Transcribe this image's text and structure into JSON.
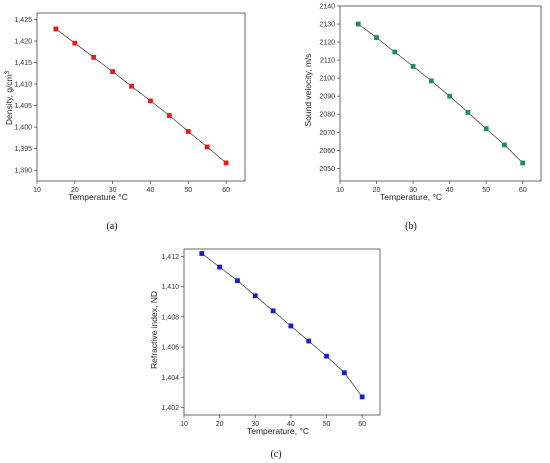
{
  "chart_data": [
    {
      "type": "line",
      "panel_label": "(a)",
      "xlabel": "Temperature °C",
      "ylabel": "Density, g/cm",
      "ylabel_sup": "3",
      "xlim": [
        10,
        65
      ],
      "ylim": [
        1.3875,
        1.4265
      ],
      "xticks": [
        10,
        20,
        30,
        40,
        50,
        60
      ],
      "xtick_labels": [
        "10",
        "20",
        "30",
        "40",
        "50",
        "60"
      ],
      "yticks": [
        1.39,
        1.395,
        1.4,
        1.405,
        1.41,
        1.415,
        1.42,
        1.425
      ],
      "ytick_labels": [
        "1,390",
        "1,395",
        "1,400",
        "1,405",
        "1,410",
        "1,415",
        "1,420",
        "1,425"
      ],
      "marker_color": "#e8191b",
      "x": [
        15,
        20,
        25,
        30,
        35,
        40,
        45,
        50,
        55,
        60
      ],
      "y": [
        1.4228,
        1.4195,
        1.4162,
        1.4129,
        1.4095,
        1.4061,
        1.4027,
        1.399,
        1.3954,
        1.3917
      ]
    },
    {
      "type": "line",
      "panel_label": "(b)",
      "xlabel": "Temperature, °C",
      "ylabel": "Sound velocity, m/s",
      "xlim": [
        10,
        65
      ],
      "ylim": [
        2043,
        2140
      ],
      "xticks": [
        10,
        20,
        30,
        40,
        50,
        60
      ],
      "xtick_labels": [
        "10",
        "20",
        "30",
        "40",
        "50",
        "60"
      ],
      "yticks": [
        2050,
        2060,
        2070,
        2080,
        2090,
        2100,
        2110,
        2120,
        2130,
        2140
      ],
      "ytick_labels": [
        "2050",
        "2060",
        "2070",
        "2080",
        "2090",
        "2100",
        "2110",
        "2120",
        "2130",
        "2140"
      ],
      "marker_color": "#1f8a6a",
      "x": [
        15,
        20,
        25,
        30,
        35,
        40,
        45,
        50,
        55,
        60
      ],
      "y": [
        2130,
        2122.5,
        2114.5,
        2106.5,
        2098.5,
        2090,
        2081,
        2072,
        2063,
        2053
      ]
    },
    {
      "type": "line",
      "panel_label": "(c)",
      "xlabel": "Temperature, °C",
      "ylabel": "Refractive index, ND",
      "xlim": [
        10,
        65
      ],
      "ylim": [
        1.4015,
        1.4125
      ],
      "xticks": [
        10,
        20,
        30,
        40,
        50,
        60
      ],
      "xtick_labels": [
        "10",
        "20",
        "30",
        "40",
        "50",
        "60"
      ],
      "yticks": [
        1.402,
        1.404,
        1.406,
        1.408,
        1.41,
        1.412
      ],
      "ytick_labels": [
        "1,402",
        "1,404",
        "1,406",
        "1,408",
        "1,410",
        "1,412"
      ],
      "marker_color": "#1a1acf",
      "x": [
        15,
        20,
        25,
        30,
        35,
        40,
        45,
        50,
        55,
        60
      ],
      "y": [
        1.4122,
        1.4113,
        1.4104,
        1.4094,
        1.4084,
        1.4074,
        1.4064,
        1.4054,
        1.4043,
        1.4027
      ]
    }
  ]
}
